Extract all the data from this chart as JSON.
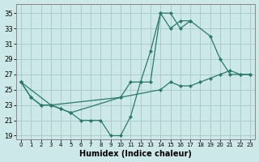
{
  "bg_color": "#cce8e8",
  "grid_color": "#aacccc",
  "line_color": "#2a7a6a",
  "xlabel": "Humidex (Indice chaleur)",
  "xlim": [
    -0.5,
    23.5
  ],
  "ylim": [
    18.5,
    36.2
  ],
  "xticks": [
    0,
    1,
    2,
    3,
    4,
    5,
    6,
    7,
    8,
    9,
    10,
    11,
    12,
    13,
    14,
    15,
    16,
    17,
    18,
    19,
    20,
    21,
    22,
    23
  ],
  "yticks": [
    19,
    21,
    23,
    25,
    27,
    29,
    31,
    33,
    35
  ],
  "series1_x": [
    0,
    1,
    2,
    3,
    4,
    5,
    6,
    7,
    8,
    9,
    10,
    11,
    12,
    13,
    14,
    15,
    16,
    17
  ],
  "series1_y": [
    26,
    24,
    23,
    23,
    22.5,
    22,
    21,
    21,
    21,
    19,
    19,
    21.5,
    26,
    30,
    35,
    35,
    33,
    34
  ],
  "series2_x": [
    0,
    1,
    2,
    3,
    4,
    5,
    10,
    11,
    12,
    13,
    14,
    15,
    16,
    17,
    19,
    20,
    21,
    22,
    23
  ],
  "series2_y": [
    26,
    24,
    23,
    23,
    22.5,
    22,
    24,
    26,
    26,
    26,
    35,
    33,
    34,
    34,
    32,
    29,
    27,
    27,
    27
  ],
  "series3_x": [
    0,
    3,
    10,
    14,
    15,
    16,
    17,
    18,
    19,
    20,
    21,
    22,
    23
  ],
  "series3_y": [
    26,
    23,
    24,
    25,
    26,
    25.5,
    25.5,
    26,
    26.5,
    27,
    27.5,
    27,
    27
  ]
}
